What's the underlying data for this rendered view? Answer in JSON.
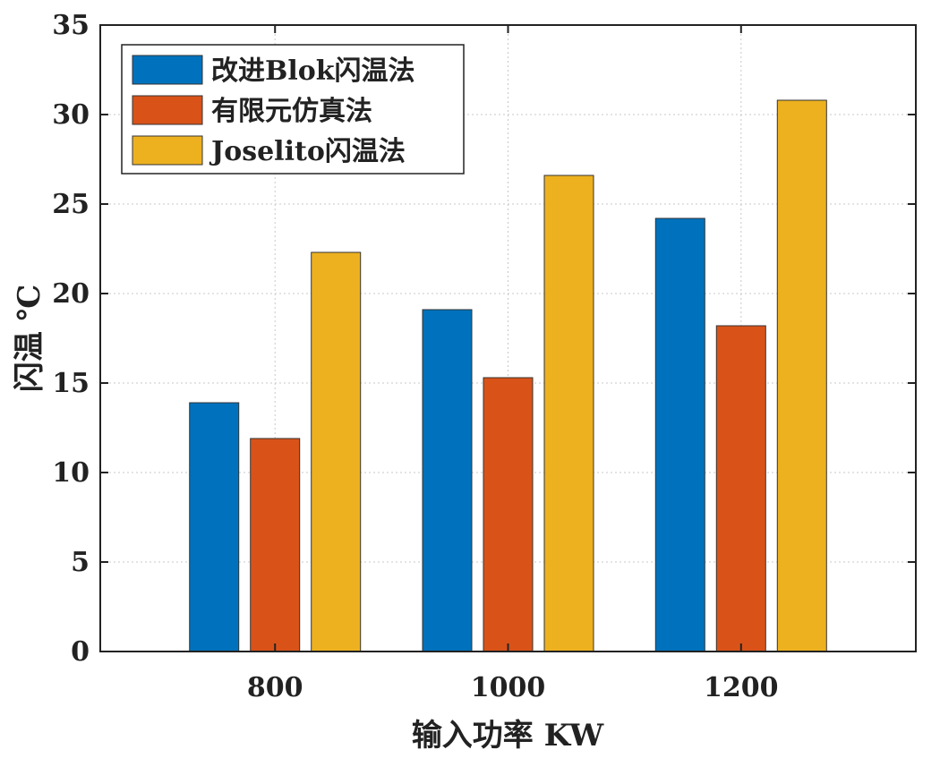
{
  "chart_data": {
    "type": "bar",
    "categories": [
      "800",
      "1000",
      "1200"
    ],
    "series": [
      {
        "name": "改进Blok闪温法",
        "color": "#0072BD",
        "values": [
          13.9,
          19.1,
          24.2
        ]
      },
      {
        "name": "有限元仿真法",
        "color": "#D95319",
        "values": [
          11.9,
          15.3,
          18.2
        ]
      },
      {
        "name": "Joselito闪温法",
        "color": "#EDB120",
        "values": [
          22.3,
          26.6,
          30.8
        ]
      }
    ],
    "xlabel": "输入功率  KW",
    "ylabel": "闪温  ℃",
    "ylim": [
      0,
      35
    ],
    "yticks": [
      "0",
      "5",
      "10",
      "15",
      "20",
      "25",
      "30",
      "35"
    ],
    "grid": true,
    "legend_position": "top-left"
  }
}
